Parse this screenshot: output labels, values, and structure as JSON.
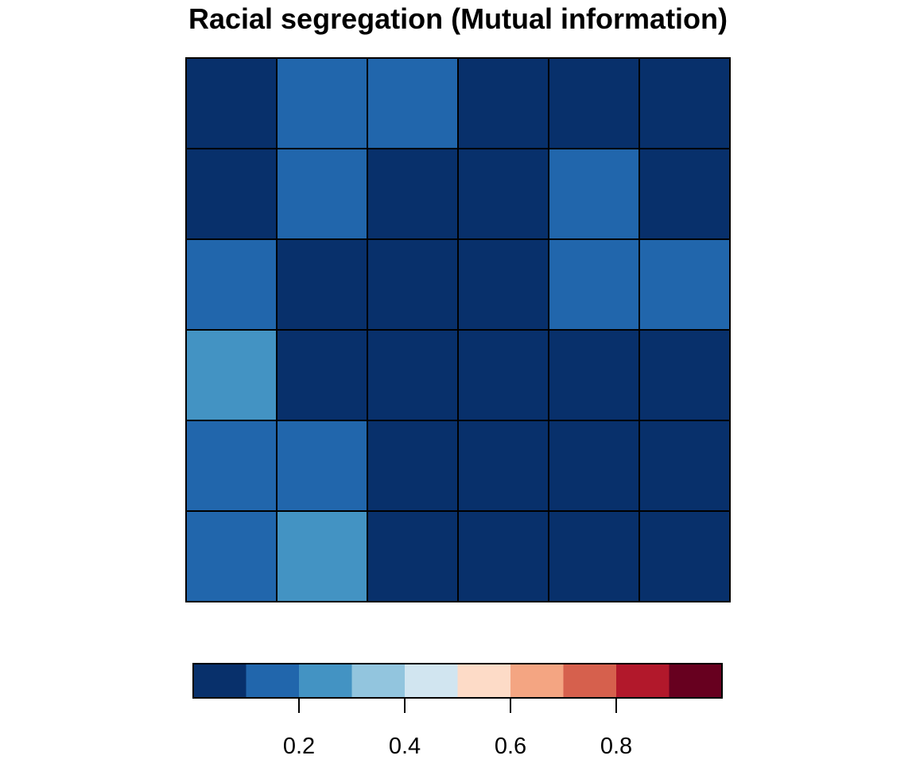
{
  "chart_data": {
    "type": "heatmap",
    "title": "Racial segregation (Mutual information)",
    "xlabel": "",
    "ylabel": "",
    "grid": {
      "rows": 6,
      "cols": 6,
      "values": [
        [
          0.05,
          0.15,
          0.15,
          0.05,
          0.05,
          0.05
        ],
        [
          0.05,
          0.15,
          0.05,
          0.05,
          0.15,
          0.05
        ],
        [
          0.15,
          0.05,
          0.05,
          0.05,
          0.15,
          0.15
        ],
        [
          0.25,
          0.05,
          0.05,
          0.05,
          0.05,
          0.05
        ],
        [
          0.15,
          0.15,
          0.05,
          0.05,
          0.05,
          0.05
        ],
        [
          0.15,
          0.25,
          0.05,
          0.05,
          0.05,
          0.05
        ]
      ]
    },
    "colorbar": {
      "range": [
        0,
        1
      ],
      "bins": 10,
      "colors": [
        "#08306B",
        "#2166AC",
        "#4393C3",
        "#92C5DE",
        "#D1E5F0",
        "#FDDBC7",
        "#F4A582",
        "#D6604D",
        "#B2182B",
        "#67001F"
      ],
      "ticks": [
        0.2,
        0.4,
        0.6,
        0.8
      ],
      "tick_labels": [
        "0.2",
        "0.4",
        "0.6",
        "0.8"
      ],
      "placement": "bottom"
    }
  }
}
